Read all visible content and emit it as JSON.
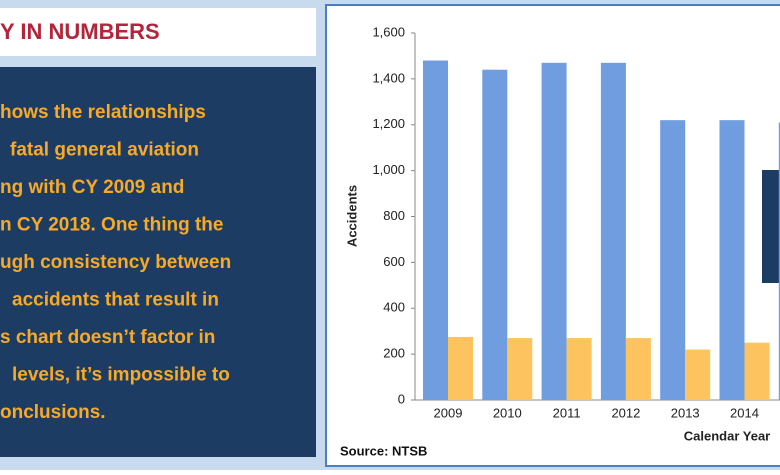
{
  "sidebar": {
    "title": "Y IN NUMBERS",
    "lines": [
      "hows the relationships",
      "fatal general aviation",
      "ng with CY 2009 and",
      "n CY 2018. One thing the",
      "ugh consistency between",
      "accidents that result in",
      "s chart doesn’t factor in",
      "levels, it’s impossible to",
      "onclusions."
    ]
  },
  "chart_data": {
    "type": "bar",
    "y_label": "Accidents",
    "x_label": "Calendar Year",
    "source": "Source: NTSB",
    "categories": [
      "2009",
      "2010",
      "2011",
      "2012",
      "2013",
      "2014",
      null
    ],
    "series": [
      {
        "color": "#6f9ddf",
        "values": [
          1480,
          1440,
          1470,
          1470,
          1220,
          1220,
          1210
        ]
      },
      {
        "color": "#fdc35f",
        "values": [
          275,
          270,
          270,
          270,
          220,
          250,
          null
        ]
      }
    ],
    "ylim": [
      0,
      1600
    ],
    "yticks": [
      0,
      200,
      400,
      600,
      800,
      {
        "value": 1000,
        "label": "1,000"
      },
      {
        "value": 1200,
        "label": "1,200"
      },
      {
        "value": 1400,
        "label": "1,400"
      },
      {
        "value": 1600,
        "label": "1,600"
      }
    ]
  }
}
